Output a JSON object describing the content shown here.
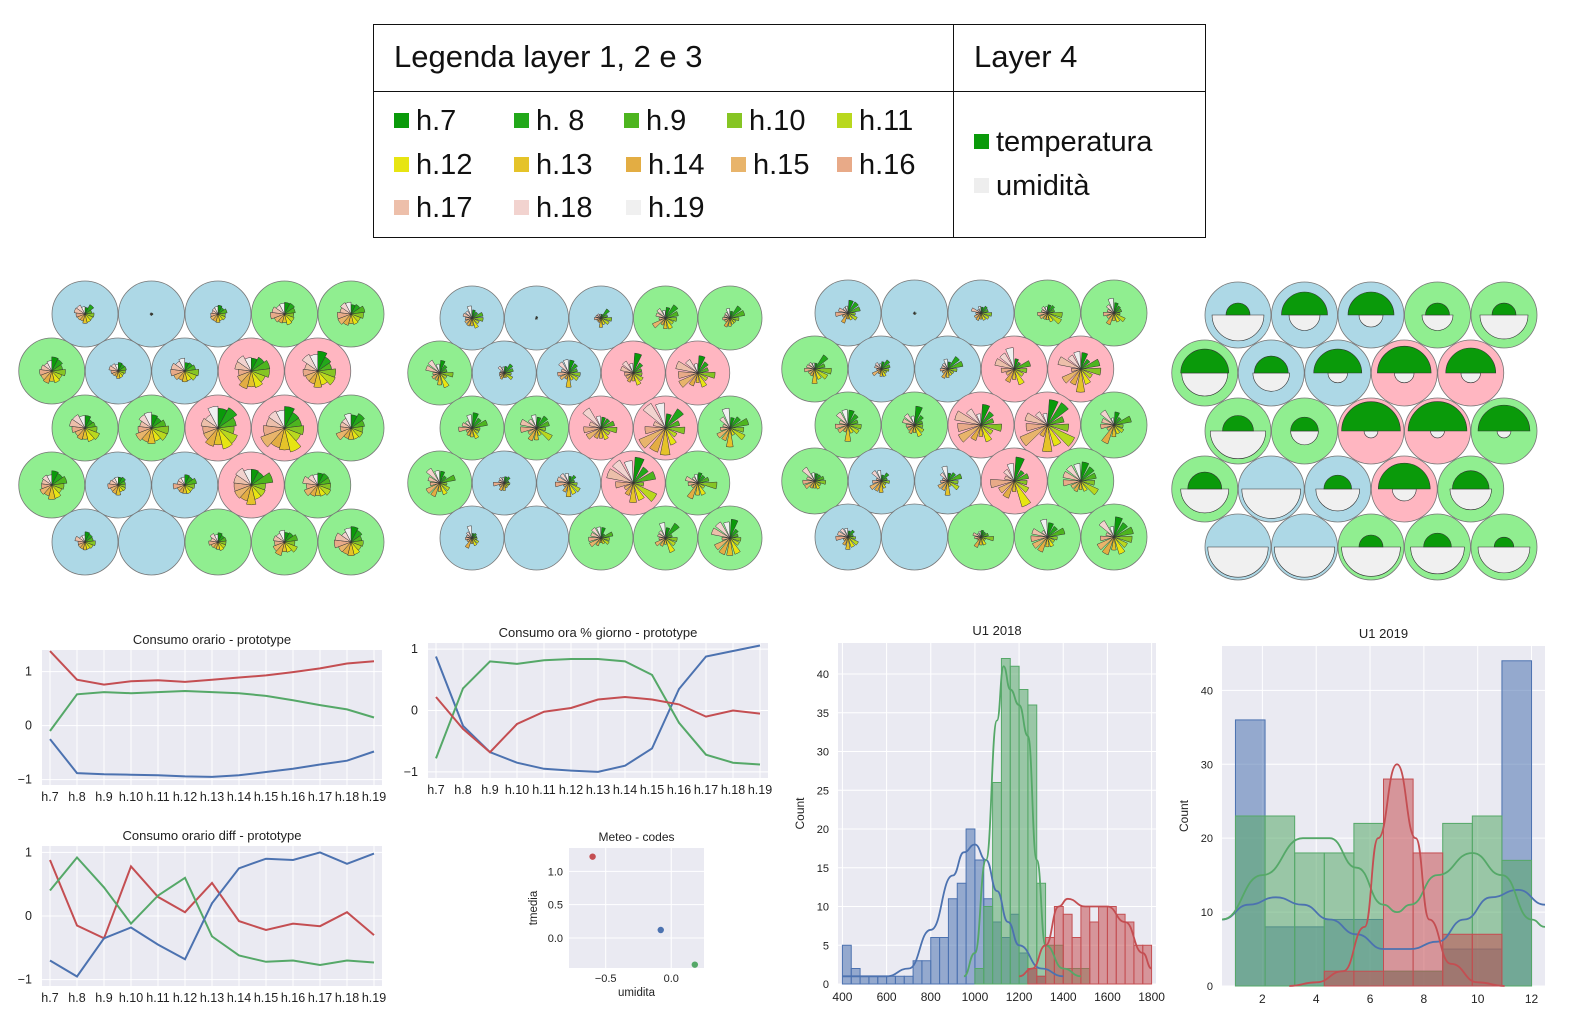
{
  "legend": {
    "title_left": "Legenda layer 1, 2 e 3",
    "title_right": "Layer 4",
    "hours": [
      {
        "label": "h.7",
        "color": "#0a9a0a"
      },
      {
        "label": "h. 8",
        "color": "#22a81a"
      },
      {
        "label": "h.9",
        "color": "#4db51f"
      },
      {
        "label": "h.10",
        "color": "#86c524"
      },
      {
        "label": "h.11",
        "color": "#b9d81e"
      },
      {
        "label": "h.12",
        "color": "#e7e512"
      },
      {
        "label": "h.13",
        "color": "#e5c329"
      },
      {
        "label": "h.14",
        "color": "#e3ad43"
      },
      {
        "label": "h.15",
        "color": "#e8b46b"
      },
      {
        "label": "h.16",
        "color": "#e8aa88"
      },
      {
        "label": "h.17",
        "color": "#edbfaa"
      },
      {
        "label": "h.18",
        "color": "#f2d3cf"
      },
      {
        "label": "h.19",
        "color": "#f0f0f0"
      }
    ],
    "layer4": [
      {
        "label": "temperatura",
        "color": "#0a9a0a"
      },
      {
        "label": "umidità",
        "color": "#eeeeee"
      }
    ]
  },
  "colors": {
    "blue_cell": "#add8e6",
    "green_cell": "#90ee90",
    "pink_cell": "#ffb6c1",
    "series_blue": "#4c72b0",
    "series_green": "#55a868",
    "series_red": "#c44e52",
    "plot_bg": "#eaeaf2"
  },
  "som_grids": {
    "layer1": [
      [
        "blue",
        "blue",
        "blue",
        "green",
        "green"
      ],
      [
        "green",
        "blue",
        "blue",
        "pink",
        "pink"
      ],
      [
        "green",
        "green",
        "pink",
        "pink",
        "green"
      ],
      [
        "green",
        "blue",
        "blue",
        "pink",
        "green"
      ],
      [
        "blue",
        "blue",
        "green",
        "green",
        "green"
      ]
    ],
    "layer2": [
      [
        "blue",
        "blue",
        "blue",
        "green",
        "green"
      ],
      [
        "green",
        "blue",
        "blue",
        "pink",
        "pink"
      ],
      [
        "green",
        "green",
        "pink",
        "pink",
        "green"
      ],
      [
        "green",
        "blue",
        "blue",
        "pink",
        "green"
      ],
      [
        "blue",
        "blue",
        "green",
        "green",
        "green"
      ]
    ],
    "layer3": [
      [
        "blue",
        "blue",
        "blue",
        "green",
        "green"
      ],
      [
        "green",
        "blue",
        "blue",
        "pink",
        "pink"
      ],
      [
        "green",
        "green",
        "pink",
        "pink",
        "green"
      ],
      [
        "green",
        "blue",
        "blue",
        "pink",
        "green"
      ],
      [
        "blue",
        "blue",
        "green",
        "green",
        "green"
      ]
    ],
    "layer4": [
      [
        "blue",
        "blue",
        "blue",
        "green",
        "green"
      ],
      [
        "green",
        "blue",
        "blue",
        "pink",
        "pink"
      ],
      [
        "green",
        "green",
        "pink",
        "pink",
        "green"
      ],
      [
        "green",
        "blue",
        "blue",
        "pink",
        "green"
      ],
      [
        "blue",
        "blue",
        "green",
        "green",
        "green"
      ]
    ],
    "layer1_size": [
      [
        0.35,
        0.05,
        0.3,
        0.45,
        0.45
      ],
      [
        0.45,
        0.3,
        0.45,
        0.6,
        0.65
      ],
      [
        0.5,
        0.55,
        0.75,
        0.85,
        0.55
      ],
      [
        0.5,
        0.35,
        0.4,
        0.75,
        0.55
      ],
      [
        0.35,
        0.0,
        0.35,
        0.5,
        0.55
      ]
    ],
    "layer4_temp": [
      [
        0.15,
        0.55,
        0.55,
        0.15,
        0.15
      ],
      [
        0.6,
        0.3,
        0.6,
        0.75,
        0.65
      ],
      [
        0.25,
        0.2,
        0.9,
        0.9,
        0.7
      ],
      [
        0.3,
        0.0,
        0.2,
        0.7,
        0.35
      ],
      [
        0.0,
        0.0,
        0.15,
        0.2,
        0.1
      ]
    ],
    "layer4_umid": [
      [
        0.7,
        0.25,
        0.15,
        0.25,
        0.6
      ],
      [
        0.55,
        0.35,
        0.1,
        0.1,
        0.1
      ],
      [
        0.8,
        0.2,
        0.05,
        0.05,
        0.05
      ],
      [
        0.6,
        0.9,
        0.5,
        0.15,
        0.45
      ],
      [
        0.95,
        0.95,
        0.9,
        0.75,
        0.7
      ]
    ]
  },
  "chart_data": [
    {
      "type": "line",
      "title": "Consumo orario - prototype",
      "categories": [
        "h.7",
        "h.8",
        "h.9",
        "h.10",
        "h.11",
        "h.12",
        "h.13",
        "h.14",
        "h.15",
        "h.16",
        "h.17",
        "h.18",
        "h.19"
      ],
      "yticks": [
        "1",
        "0",
        "−1"
      ],
      "ylim": [
        -1.1,
        1.4
      ],
      "series": [
        {
          "color": "#c44e52",
          "values": [
            1.38,
            0.85,
            0.76,
            0.82,
            0.84,
            0.81,
            0.85,
            0.89,
            0.93,
            0.99,
            1.06,
            1.15,
            1.19
          ]
        },
        {
          "color": "#55a868",
          "values": [
            -0.1,
            0.58,
            0.62,
            0.6,
            0.62,
            0.64,
            0.62,
            0.6,
            0.55,
            0.47,
            0.38,
            0.3,
            0.15
          ]
        },
        {
          "color": "#4c72b0",
          "values": [
            -0.25,
            -0.88,
            -0.9,
            -0.91,
            -0.92,
            -0.94,
            -0.95,
            -0.92,
            -0.86,
            -0.8,
            -0.72,
            -0.65,
            -0.48
          ]
        }
      ]
    },
    {
      "type": "line",
      "title": "Consumo ora % giorno - prototype",
      "categories": [
        "h.7",
        "h.8",
        "h.9",
        "h.10",
        "h.11",
        "h.12",
        "h.13",
        "h.14",
        "h.15",
        "h.16",
        "h.17",
        "h.18",
        "h.19"
      ],
      "yticks": [
        "1",
        "0",
        "−1"
      ],
      "ylim": [
        -1.1,
        1.1
      ],
      "series": [
        {
          "color": "#4c72b0",
          "values": [
            0.88,
            -0.25,
            -0.68,
            -0.85,
            -0.95,
            -0.98,
            -1.0,
            -0.9,
            -0.62,
            0.35,
            0.88,
            0.97,
            1.06
          ]
        },
        {
          "color": "#55a868",
          "values": [
            -0.78,
            0.36,
            0.8,
            0.76,
            0.82,
            0.84,
            0.84,
            0.8,
            0.58,
            -0.2,
            -0.72,
            -0.85,
            -0.88
          ]
        },
        {
          "color": "#c44e52",
          "values": [
            0.22,
            -0.3,
            -0.68,
            -0.22,
            -0.02,
            0.04,
            0.18,
            0.22,
            0.18,
            0.1,
            -0.1,
            0.0,
            -0.05
          ]
        }
      ]
    },
    {
      "type": "line",
      "title": "Consumo orario diff - prototype",
      "categories": [
        "h.7",
        "h.8",
        "h.9",
        "h.10",
        "h.11",
        "h.12",
        "h.13",
        "h.14",
        "h.15",
        "h.16",
        "h.17",
        "h.18",
        "h.19"
      ],
      "yticks": [
        "1",
        "0",
        "−1"
      ],
      "ylim": [
        -1.1,
        1.1
      ],
      "series": [
        {
          "color": "#c44e52",
          "values": [
            0.88,
            -0.15,
            -0.35,
            0.78,
            0.3,
            0.06,
            0.52,
            -0.08,
            -0.22,
            -0.12,
            -0.16,
            0.06,
            -0.3
          ]
        },
        {
          "color": "#55a868",
          "values": [
            0.4,
            0.92,
            0.45,
            -0.12,
            0.32,
            0.6,
            -0.32,
            -0.62,
            -0.72,
            -0.7,
            -0.77,
            -0.7,
            -0.73
          ]
        },
        {
          "color": "#4c72b0",
          "values": [
            -0.7,
            -0.95,
            -0.35,
            -0.18,
            -0.45,
            -0.68,
            0.2,
            0.75,
            0.9,
            0.88,
            1.0,
            0.82,
            0.98
          ]
        }
      ]
    },
    {
      "type": "scatter",
      "title": "Meteo - codes",
      "xlabel": "umidita",
      "ylabel": "tmedia",
      "xlim": [
        -0.78,
        0.25
      ],
      "ylim": [
        -0.45,
        1.35
      ],
      "xticks": [
        -0.5,
        0.0
      ],
      "xtick_labels": [
        "−0.5",
        "0.0"
      ],
      "yticks": [
        1.0,
        0.5,
        0.0
      ],
      "ytick_labels": [
        "1.0",
        "0.5",
        "0.0"
      ],
      "points": [
        {
          "x": -0.6,
          "y": 1.22,
          "color": "#c44e52"
        },
        {
          "x": -0.08,
          "y": 0.12,
          "color": "#4c72b0"
        },
        {
          "x": 0.18,
          "y": -0.4,
          "color": "#55a868"
        }
      ]
    },
    {
      "type": "bar",
      "title": "U1 2018",
      "ylabel": "Count",
      "xlim": [
        380,
        1820
      ],
      "ylim": [
        0,
        44
      ],
      "xticks": [
        400,
        600,
        800,
        1000,
        1200,
        1400,
        1600,
        1800
      ],
      "yticks": [
        0,
        5,
        10,
        15,
        20,
        25,
        30,
        35,
        40
      ],
      "series": [
        {
          "color": "#4c72b0",
          "bin_edges": [
            400,
            440,
            480,
            520,
            560,
            600,
            640,
            680,
            720,
            760,
            800,
            840,
            880,
            920,
            960,
            1000,
            1040,
            1080,
            1120,
            1160,
            1200,
            1240,
            1280,
            1320
          ],
          "counts": [
            5,
            2,
            1,
            1,
            1,
            1,
            1,
            1,
            3,
            3,
            6,
            6,
            11,
            13,
            20,
            16,
            11,
            8,
            6,
            9,
            4,
            2,
            1
          ],
          "kde": [
            [
              400,
              1
            ],
            [
              500,
              1
            ],
            [
              600,
              1
            ],
            [
              700,
              2
            ],
            [
              800,
              7
            ],
            [
              900,
              14
            ],
            [
              950,
              17
            ],
            [
              1000,
              18
            ],
            [
              1050,
              16
            ],
            [
              1100,
              12
            ],
            [
              1150,
              8
            ],
            [
              1200,
              5
            ],
            [
              1300,
              2
            ],
            [
              1400,
              1
            ]
          ]
        },
        {
          "color": "#55a868",
          "bin_edges": [
            1000,
            1040,
            1080,
            1120,
            1160,
            1200,
            1240,
            1280,
            1320,
            1360,
            1400,
            1440,
            1480,
            1520
          ],
          "counts": [
            2,
            10,
            26,
            42,
            41,
            38,
            36,
            13,
            5,
            5,
            2,
            2,
            2
          ],
          "kde": [
            [
              950,
              1
            ],
            [
              1000,
              4
            ],
            [
              1050,
              16
            ],
            [
              1100,
              34
            ],
            [
              1130,
              41
            ],
            [
              1160,
              38
            ],
            [
              1200,
              36
            ],
            [
              1240,
              32
            ],
            [
              1280,
              16
            ],
            [
              1320,
              5
            ],
            [
              1400,
              2
            ],
            [
              1480,
              1
            ]
          ]
        },
        {
          "color": "#c44e52",
          "bin_edges": [
            1240,
            1280,
            1320,
            1360,
            1400,
            1440,
            1480,
            1520,
            1560,
            1600,
            1640,
            1680,
            1720,
            1760,
            1800
          ],
          "counts": [
            2,
            1,
            6,
            10,
            9,
            6,
            10,
            8,
            10,
            10,
            9,
            8,
            5,
            5
          ],
          "kde": [
            [
              1200,
              1
            ],
            [
              1260,
              2
            ],
            [
              1320,
              5
            ],
            [
              1380,
              10
            ],
            [
              1420,
              11
            ],
            [
              1500,
              10
            ],
            [
              1600,
              10
            ],
            [
              1680,
              8
            ],
            [
              1760,
              4
            ],
            [
              1800,
              2
            ]
          ]
        }
      ]
    },
    {
      "type": "bar",
      "title": "U1 2019",
      "ylabel": "Count",
      "xlim": [
        0.5,
        12.5
      ],
      "ylim": [
        0,
        46
      ],
      "xticks": [
        2,
        4,
        6,
        8,
        10,
        12
      ],
      "yticks": [
        0,
        10,
        20,
        30,
        40
      ],
      "series": [
        {
          "color": "#4c72b0",
          "bin_edges": [
            1,
            2.1,
            3.2,
            4.3,
            5.4,
            6.5,
            7.6,
            8.7,
            9.8,
            10.9,
            12
          ],
          "counts": [
            36,
            8,
            8,
            9,
            9,
            2,
            2,
            5,
            5,
            44
          ],
          "kde": [
            [
              0.5,
              9
            ],
            [
              1.5,
              11
            ],
            [
              2.5,
              12
            ],
            [
              3.5,
              11
            ],
            [
              4.5,
              9
            ],
            [
              5.5,
              7
            ],
            [
              6.5,
              5
            ],
            [
              7.5,
              5
            ],
            [
              8.5,
              6
            ],
            [
              9.5,
              9
            ],
            [
              10.5,
              12
            ],
            [
              11.5,
              13
            ],
            [
              12.5,
              11
            ]
          ]
        },
        {
          "color": "#55a868",
          "bin_edges": [
            1,
            2.1,
            3.2,
            4.3,
            5.4,
            6.5,
            7.6,
            8.7,
            9.8,
            10.9,
            12
          ],
          "counts": [
            23,
            23,
            18,
            18,
            22,
            2,
            2,
            22,
            23,
            17
          ],
          "kde": [
            [
              0.5,
              9
            ],
            [
              2,
              15
            ],
            [
              3.5,
              20
            ],
            [
              4.5,
              20
            ],
            [
              5.5,
              16
            ],
            [
              6.5,
              11
            ],
            [
              7,
              10
            ],
            [
              7.5,
              11
            ],
            [
              8.5,
              15
            ],
            [
              9.8,
              18
            ],
            [
              10.9,
              15
            ],
            [
              12,
              9
            ],
            [
              12.5,
              8
            ]
          ]
        },
        {
          "color": "#c44e52",
          "bin_edges": [
            1,
            2.1,
            3.2,
            4.3,
            5.4,
            6.5,
            7.6,
            8.7,
            9.8,
            10.9,
            12
          ],
          "counts": [
            0,
            0,
            0,
            2,
            2,
            28,
            18,
            7,
            7,
            0
          ],
          "kde": [
            [
              3,
              0
            ],
            [
              4,
              0.5
            ],
            [
              5,
              2
            ],
            [
              5.8,
              8
            ],
            [
              6.3,
              20
            ],
            [
              7,
              30
            ],
            [
              7.7,
              20
            ],
            [
              8.2,
              9
            ],
            [
              9,
              3
            ],
            [
              10,
              0.5
            ],
            [
              11,
              0
            ]
          ]
        }
      ]
    }
  ]
}
